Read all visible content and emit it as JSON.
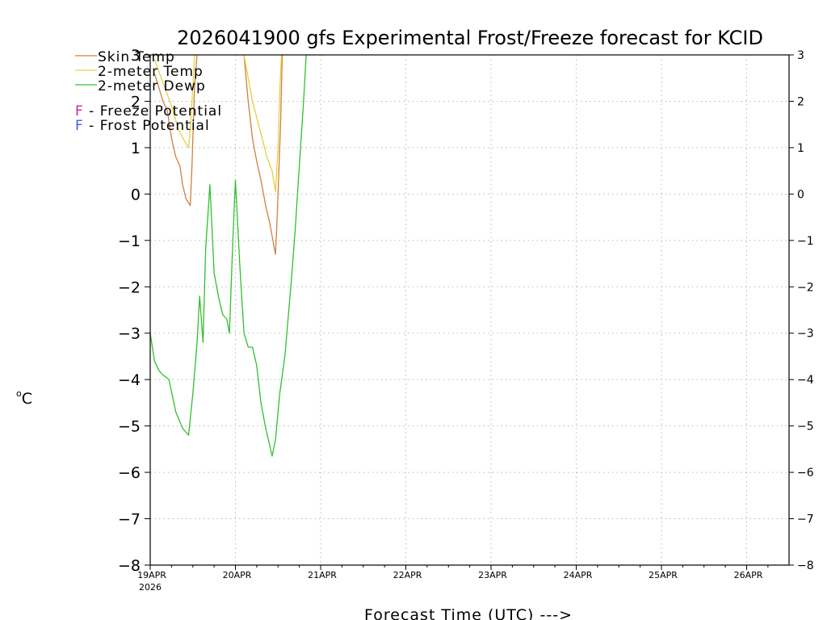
{
  "chart_data": {
    "type": "line",
    "title": "2026041900 gfs Experimental Frost/Freeze forecast for KCID",
    "xlabel": "Forecast Time (UTC) --->",
    "ylabel_sup": "o",
    "ylabel": "C",
    "ylim": [
      -8,
      3
    ],
    "xlim": [
      0,
      7.5
    ],
    "x_unit": "days since 19APR 00Z",
    "yticks_left": [
      "−8",
      "−7",
      "−6",
      "−5",
      "−4",
      "−3",
      "−2",
      "−1",
      "0",
      "1",
      "2",
      "3"
    ],
    "yticks_right": [
      "−8",
      "−7",
      "−6",
      "−5",
      "−4",
      "−3",
      "−2",
      "−1",
      "0",
      "1",
      "2",
      "3"
    ],
    "xticks": [
      {
        "label": "19APR",
        "sub": "2026",
        "x": 0
      },
      {
        "label": "20APR",
        "x": 1
      },
      {
        "label": "21APR",
        "x": 2
      },
      {
        "label": "22APR",
        "x": 3
      },
      {
        "label": "23APR",
        "x": 4
      },
      {
        "label": "24APR",
        "x": 5
      },
      {
        "label": "25APR",
        "x": 6
      },
      {
        "label": "26APR",
        "x": 7
      }
    ],
    "grid": true,
    "legend": [
      {
        "label": "Skin Temp",
        "color": "#d08040"
      },
      {
        "label": "2-meter Temp",
        "color": "#e6d040"
      },
      {
        "label": "2-meter Dewp",
        "color": "#30c030"
      }
    ],
    "flags": [
      {
        "letter": "F",
        "text": " - Freeze Potential",
        "color": "#c02ca0"
      },
      {
        "letter": "F",
        "text": " - Frost Potential",
        "color": "#4060e0"
      }
    ],
    "series": [
      {
        "name": "Skin Temp",
        "color": "#d08040",
        "segments": [
          [
            [
              0.05,
              2.6
            ],
            [
              0.1,
              2.3
            ],
            [
              0.15,
              2.0
            ],
            [
              0.2,
              1.8
            ],
            [
              0.25,
              1.2
            ],
            [
              0.3,
              0.8
            ],
            [
              0.35,
              0.6
            ],
            [
              0.38,
              0.2
            ],
            [
              0.42,
              -0.1
            ],
            [
              0.47,
              -0.25
            ],
            [
              0.49,
              0.6
            ],
            [
              0.52,
              2.3
            ],
            [
              0.55,
              3.0
            ]
          ],
          [
            [
              1.1,
              3.0
            ],
            [
              1.15,
              2.0
            ],
            [
              1.2,
              1.2
            ],
            [
              1.25,
              0.7
            ],
            [
              1.3,
              0.3
            ],
            [
              1.33,
              0.0
            ],
            [
              1.36,
              -0.3
            ],
            [
              1.4,
              -0.6
            ],
            [
              1.45,
              -1.1
            ],
            [
              1.47,
              -1.3
            ],
            [
              1.49,
              -0.5
            ],
            [
              1.51,
              0.5
            ],
            [
              1.53,
              1.5
            ],
            [
              1.55,
              3.0
            ]
          ]
        ]
      },
      {
        "name": "2-meter Temp",
        "color": "#e6d040",
        "segments": [
          [
            [
              0.05,
              2.9
            ],
            [
              0.15,
              2.4
            ],
            [
              0.25,
              1.9
            ],
            [
              0.33,
              1.4
            ],
            [
              0.4,
              1.15
            ],
            [
              0.45,
              1.0
            ],
            [
              0.47,
              1.4
            ],
            [
              0.5,
              2.3
            ],
            [
              0.52,
              3.0
            ]
          ],
          [
            [
              1.1,
              3.0
            ],
            [
              1.2,
              2.0
            ],
            [
              1.3,
              1.3
            ],
            [
              1.37,
              0.8
            ],
            [
              1.43,
              0.5
            ],
            [
              1.47,
              0.05
            ],
            [
              1.5,
              1.0
            ],
            [
              1.52,
              2.2
            ],
            [
              1.54,
              3.0
            ]
          ]
        ]
      },
      {
        "name": "2-meter Dewp",
        "color": "#30c030",
        "segments": [
          [
            [
              0.0,
              -3.0
            ],
            [
              0.05,
              -3.6
            ],
            [
              0.1,
              -3.8
            ],
            [
              0.15,
              -3.9
            ],
            [
              0.22,
              -4.0
            ],
            [
              0.3,
              -4.7
            ],
            [
              0.38,
              -5.05
            ],
            [
              0.45,
              -5.2
            ],
            [
              0.5,
              -4.3
            ],
            [
              0.55,
              -3.2
            ],
            [
              0.58,
              -2.2
            ],
            [
              0.62,
              -3.2
            ],
            [
              0.65,
              -1.2
            ],
            [
              0.7,
              0.2
            ],
            [
              0.75,
              -1.7
            ],
            [
              0.8,
              -2.2
            ],
            [
              0.85,
              -2.6
            ],
            [
              0.9,
              -2.7
            ],
            [
              0.93,
              -3.0
            ],
            [
              0.97,
              -1.0
            ],
            [
              1.0,
              0.3
            ],
            [
              1.05,
              -1.5
            ],
            [
              1.1,
              -3.0
            ],
            [
              1.15,
              -3.3
            ],
            [
              1.2,
              -3.3
            ],
            [
              1.25,
              -3.7
            ],
            [
              1.3,
              -4.5
            ],
            [
              1.35,
              -5.0
            ],
            [
              1.4,
              -5.4
            ],
            [
              1.43,
              -5.65
            ],
            [
              1.47,
              -5.3
            ],
            [
              1.52,
              -4.3
            ],
            [
              1.58,
              -3.5
            ],
            [
              1.65,
              -2.0
            ],
            [
              1.7,
              -0.8
            ],
            [
              1.75,
              0.6
            ],
            [
              1.8,
              2.0
            ],
            [
              1.83,
              3.0
            ]
          ]
        ]
      }
    ]
  }
}
